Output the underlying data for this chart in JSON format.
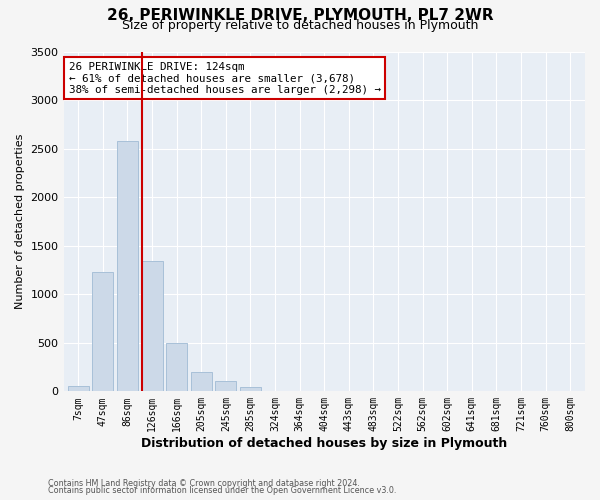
{
  "title": "26, PERIWINKLE DRIVE, PLYMOUTH, PL7 2WR",
  "subtitle": "Size of property relative to detached houses in Plymouth",
  "xlabel": "Distribution of detached houses by size in Plymouth",
  "ylabel": "Number of detached properties",
  "bar_labels": [
    "7sqm",
    "47sqm",
    "86sqm",
    "126sqm",
    "166sqm",
    "205sqm",
    "245sqm",
    "285sqm",
    "324sqm",
    "364sqm",
    "404sqm",
    "443sqm",
    "483sqm",
    "522sqm",
    "562sqm",
    "602sqm",
    "641sqm",
    "681sqm",
    "721sqm",
    "760sqm",
    "800sqm"
  ],
  "bar_values": [
    50,
    1230,
    2580,
    1340,
    500,
    200,
    110,
    45,
    5,
    0,
    0,
    0,
    0,
    0,
    0,
    0,
    0,
    0,
    0,
    0,
    0
  ],
  "bar_color": "#ccd9e8",
  "bar_edgecolor": "#a8c0d8",
  "vline_x_idx": 3,
  "vline_color": "#cc0000",
  "annotation_title": "26 PERIWINKLE DRIVE: 124sqm",
  "annotation_line1": "← 61% of detached houses are smaller (3,678)",
  "annotation_line2": "38% of semi-detached houses are larger (2,298) →",
  "annotation_box_color": "#cc0000",
  "ylim": [
    0,
    3500
  ],
  "yticks": [
    0,
    500,
    1000,
    1500,
    2000,
    2500,
    3000,
    3500
  ],
  "footer1": "Contains HM Land Registry data © Crown copyright and database right 2024.",
  "footer2": "Contains public sector information licensed under the Open Government Licence v3.0.",
  "bg_color": "#f5f5f5",
  "plot_bg_color": "#e8eef5",
  "title_fontsize": 11,
  "subtitle_fontsize": 9
}
